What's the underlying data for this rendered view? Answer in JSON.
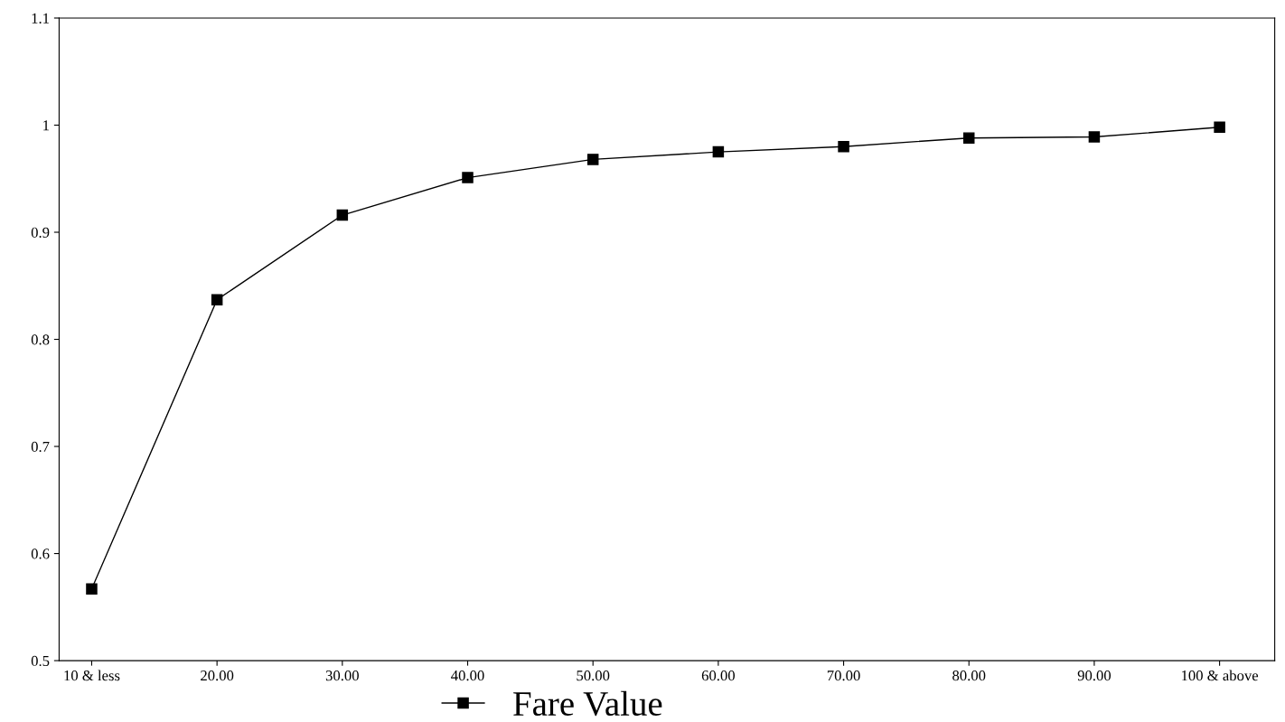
{
  "chart_data": {
    "type": "line",
    "categories": [
      "10 & less",
      "20.00",
      "30.00",
      "40.00",
      "50.00",
      "60.00",
      "70.00",
      "80.00",
      "90.00",
      "100 & above"
    ],
    "series": [
      {
        "name": "Fare Value",
        "color": "#000000",
        "values": [
          0.567,
          0.837,
          0.916,
          0.951,
          0.968,
          0.975,
          0.98,
          0.988,
          0.989,
          0.998
        ]
      }
    ],
    "ylim": [
      0.5,
      1.1
    ],
    "yticks": [
      0.5,
      0.6,
      0.7,
      0.8,
      0.9,
      1,
      1.1
    ],
    "grid": false,
    "legend": "bottom",
    "marker": "square",
    "line_style": "solid"
  }
}
